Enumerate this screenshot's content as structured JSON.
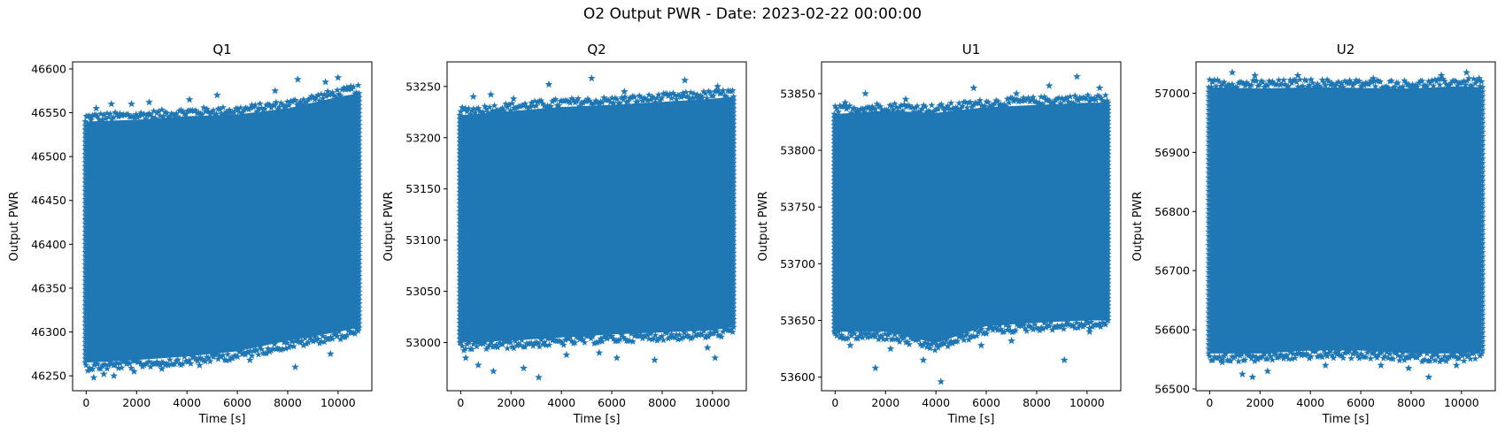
{
  "figure": {
    "suptitle": "O2 Output PWR - Date: 2023-02-22 00:00:00"
  },
  "chart_data": [
    {
      "type": "scatter",
      "title": "Q1",
      "xlabel": "Time [s]",
      "ylabel": "Output PWR",
      "marker": "star",
      "color": "#1f77b4",
      "xlim": [
        -540,
        11340
      ],
      "ylim": [
        46233,
        46608
      ],
      "xticks": [
        0,
        2000,
        4000,
        6000,
        8000,
        10000
      ],
      "yticks": [
        46250,
        46300,
        46350,
        46400,
        46450,
        46500,
        46550,
        46600
      ],
      "x_range": [
        0,
        10800
      ],
      "band": {
        "x": [
          0,
          2000,
          4000,
          6000,
          8000,
          10000,
          10800
        ],
        "upper": [
          46540,
          46542,
          46546,
          46548,
          46555,
          46568,
          46572
        ],
        "lower": [
          46265,
          46268,
          46272,
          46278,
          46290,
          46300,
          46305
        ]
      },
      "outliers": [
        [
          200,
          46545
        ],
        [
          400,
          46555
        ],
        [
          1000,
          46560
        ],
        [
          1800,
          46560
        ],
        [
          2500,
          46562
        ],
        [
          4100,
          46565
        ],
        [
          5200,
          46570
        ],
        [
          7500,
          46575
        ],
        [
          8400,
          46588
        ],
        [
          9500,
          46585
        ],
        [
          10000,
          46590
        ],
        [
          10500,
          46580
        ],
        [
          300,
          46248
        ],
        [
          700,
          46252
        ],
        [
          1100,
          46250
        ],
        [
          1900,
          46255
        ],
        [
          3000,
          46258
        ],
        [
          4500,
          46262
        ],
        [
          6500,
          46268
        ],
        [
          8300,
          46260
        ],
        [
          9700,
          46275
        ]
      ]
    },
    {
      "type": "scatter",
      "title": "Q2",
      "xlabel": "Time [s]",
      "ylabel": "Output PWR",
      "marker": "star",
      "color": "#1f77b4",
      "xlim": [
        -540,
        11340
      ],
      "ylim": [
        52953,
        53274
      ],
      "xticks": [
        0,
        2000,
        4000,
        6000,
        8000,
        10000
      ],
      "yticks": [
        53000,
        53050,
        53100,
        53150,
        53200,
        53250
      ],
      "x_range": [
        0,
        10800
      ],
      "band": {
        "x": [
          0,
          2000,
          4000,
          6000,
          8000,
          10000,
          10800
        ],
        "upper": [
          53222,
          53226,
          53230,
          53232,
          53235,
          53238,
          53240
        ],
        "lower": [
          53000,
          53002,
          53005,
          53008,
          53010,
          53012,
          53015
        ]
      },
      "outliers": [
        [
          500,
          53240
        ],
        [
          1200,
          53242
        ],
        [
          2100,
          53238
        ],
        [
          3500,
          53252
        ],
        [
          5200,
          53258
        ],
        [
          6500,
          53245
        ],
        [
          8900,
          53256
        ],
        [
          10200,
          53250
        ],
        [
          200,
          52985
        ],
        [
          700,
          52978
        ],
        [
          1300,
          52972
        ],
        [
          2500,
          52975
        ],
        [
          3100,
          52966
        ],
        [
          4200,
          52988
        ],
        [
          5500,
          52990
        ],
        [
          6200,
          52985
        ],
        [
          7700,
          52983
        ],
        [
          9800,
          52995
        ],
        [
          10100,
          52985
        ]
      ]
    },
    {
      "type": "scatter",
      "title": "U1",
      "xlabel": "Time [s]",
      "ylabel": "Output PWR",
      "marker": "star",
      "color": "#1f77b4",
      "xlim": [
        -540,
        11340
      ],
      "ylim": [
        53588,
        53878
      ],
      "xticks": [
        0,
        2000,
        4000,
        6000,
        8000,
        10000
      ],
      "yticks": [
        53600,
        53650,
        53700,
        53750,
        53800,
        53850
      ],
      "x_range": [
        0,
        10800
      ],
      "band": {
        "x": [
          0,
          2000,
          4000,
          6000,
          8000,
          10000,
          10800
        ],
        "upper": [
          53832,
          53835,
          53833,
          53838,
          53840,
          53842,
          53842
        ],
        "lower": [
          53640,
          53640,
          53630,
          53645,
          53648,
          53650,
          53650
        ]
      },
      "outliers": [
        [
          400,
          53842
        ],
        [
          1200,
          53850
        ],
        [
          2800,
          53845
        ],
        [
          5500,
          53855
        ],
        [
          7200,
          53850
        ],
        [
          8500,
          53857
        ],
        [
          9600,
          53865
        ],
        [
          10500,
          53855
        ],
        [
          600,
          53628
        ],
        [
          1600,
          53608
        ],
        [
          2200,
          53625
        ],
        [
          3500,
          53615
        ],
        [
          4200,
          53596
        ],
        [
          5800,
          53628
        ],
        [
          7000,
          53632
        ],
        [
          9100,
          53615
        ],
        [
          10100,
          53640
        ]
      ]
    },
    {
      "type": "scatter",
      "title": "U2",
      "xlabel": "Time [s]",
      "ylabel": "Output PWR",
      "marker": "star",
      "color": "#1f77b4",
      "xlim": [
        -540,
        11340
      ],
      "ylim": [
        56497,
        57053
      ],
      "xticks": [
        0,
        2000,
        4000,
        6000,
        8000,
        10000
      ],
      "yticks": [
        56500,
        56600,
        56700,
        56800,
        56900,
        57000
      ],
      "x_range": [
        0,
        10800
      ],
      "band": {
        "x": [
          0,
          2000,
          4000,
          6000,
          8000,
          10000,
          10800
        ],
        "upper": [
          57010,
          57008,
          57010,
          57009,
          57008,
          57012,
          57010
        ],
        "lower": [
          56560,
          56560,
          56565,
          56565,
          56560,
          56560,
          56565
        ]
      },
      "outliers": [
        [
          100,
          57020
        ],
        [
          900,
          57035
        ],
        [
          1800,
          57030
        ],
        [
          3500,
          57030
        ],
        [
          6500,
          57025
        ],
        [
          9200,
          57030
        ],
        [
          10200,
          57035
        ],
        [
          10700,
          57025
        ],
        [
          500,
          56545
        ],
        [
          1300,
          56525
        ],
        [
          1700,
          56520
        ],
        [
          2300,
          56530
        ],
        [
          4600,
          56540
        ],
        [
          6800,
          56540
        ],
        [
          7900,
          56535
        ],
        [
          8700,
          56520
        ],
        [
          9800,
          56540
        ]
      ]
    }
  ]
}
